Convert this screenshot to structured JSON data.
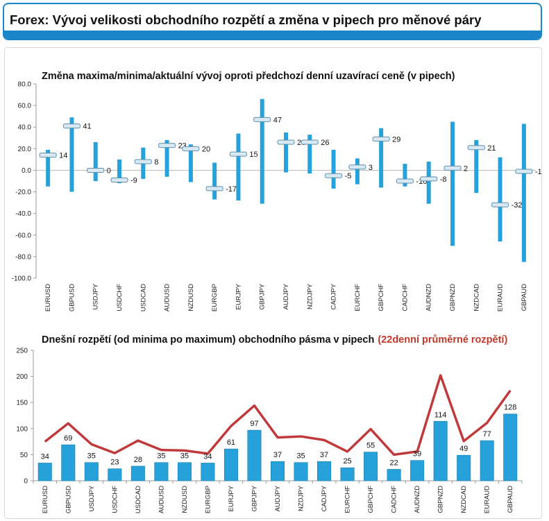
{
  "header": {
    "title": "Forex: Vývoj velikosti obchodního rozpětí a změna v pipech pro měnové páry"
  },
  "colors": {
    "accent": "#1a86c9",
    "bar": "#27a1d9",
    "line": "#c0393b"
  },
  "chart_data": [
    {
      "type": "range",
      "title": "Změna maxima/minima/aktuální vývoj oproti předchozí denní uzavírací ceně (v pipech)",
      "ylim": [
        -100,
        80
      ],
      "yticks": [
        "80.0",
        "60.0",
        "40.0",
        "20.0",
        "0.0",
        "-20.0",
        "-40.0",
        "-60.0",
        "-80.0",
        "-100.0"
      ],
      "categories": [
        "EURUSD",
        "GBPUSD",
        "USDJPY",
        "USDCHF",
        "USDCAD",
        "AUDUSD",
        "NZDUSD",
        "EURGBP",
        "EURJPY",
        "GBPJPY",
        "AUDJPY",
        "NZDJPY",
        "CADJPY",
        "EURCHF",
        "GBPCHF",
        "CADCHF",
        "AUDNZD",
        "GBPNZD",
        "NZDCAD",
        "EURAUD",
        "GBPAUD"
      ],
      "high": [
        19,
        49,
        26,
        10,
        21,
        28,
        24,
        7,
        34,
        66,
        35,
        33,
        19,
        11,
        39,
        6,
        8,
        45,
        28,
        12,
        43
      ],
      "low": [
        -15,
        -20,
        -10,
        -12,
        -8,
        -6,
        -11,
        -27,
        -28,
        -31,
        -2,
        -3,
        -17,
        -13,
        -16,
        -15,
        -31,
        -70,
        -21,
        -66,
        -85
      ],
      "current": [
        14,
        41,
        0,
        -9,
        8,
        23,
        20,
        -17,
        15,
        47,
        26,
        26,
        -5,
        3,
        29,
        -10,
        -8,
        2,
        21,
        -32,
        -1
      ],
      "labels": [
        "14",
        "41",
        "0",
        "-9",
        "8",
        "23",
        "20",
        "-17",
        "15",
        "47",
        "26",
        "26",
        "-5",
        "3",
        "29",
        "-10",
        "-8",
        "2",
        "21",
        "-32",
        "-1"
      ]
    },
    {
      "type": "bar",
      "title": "Dnešní rozpětí (od minima po maximum) obchodního pásma v pipech",
      "title_highlight": "(22denní průměrné rozpětí)",
      "ylim": [
        0,
        250
      ],
      "yticks": [
        "250",
        "200",
        "150",
        "100",
        "50",
        "0"
      ],
      "categories": [
        "EURUSD",
        "GBPUSD",
        "USDJPY",
        "USDCHF",
        "USDCAD",
        "AUDUSD",
        "NZDUSD",
        "EURGBP",
        "EURJPY",
        "GBPJPY",
        "AUDJPY",
        "NZDJPY",
        "CADJPY",
        "EURCHF",
        "GBPCHF",
        "CADCHF",
        "AUDNZD",
        "GBPNZD",
        "NZDCAD",
        "EURAUD",
        "GBPAUD"
      ],
      "values": [
        34,
        69,
        35,
        23,
        28,
        35,
        35,
        34,
        61,
        97,
        37,
        35,
        37,
        25,
        55,
        22,
        39,
        114,
        49,
        77,
        128
      ],
      "labels": [
        "34",
        "69",
        "35",
        "23",
        "28",
        "35",
        "35",
        "34",
        "61",
        "97",
        "37",
        "35",
        "37",
        "25",
        "55",
        "22",
        "39",
        "114",
        "49",
        "77",
        "128"
      ],
      "avg": [
        75,
        110,
        70,
        53,
        77,
        59,
        58,
        52,
        105,
        144,
        83,
        85,
        78,
        56,
        99,
        50,
        56,
        202,
        76,
        111,
        173
      ]
    }
  ]
}
